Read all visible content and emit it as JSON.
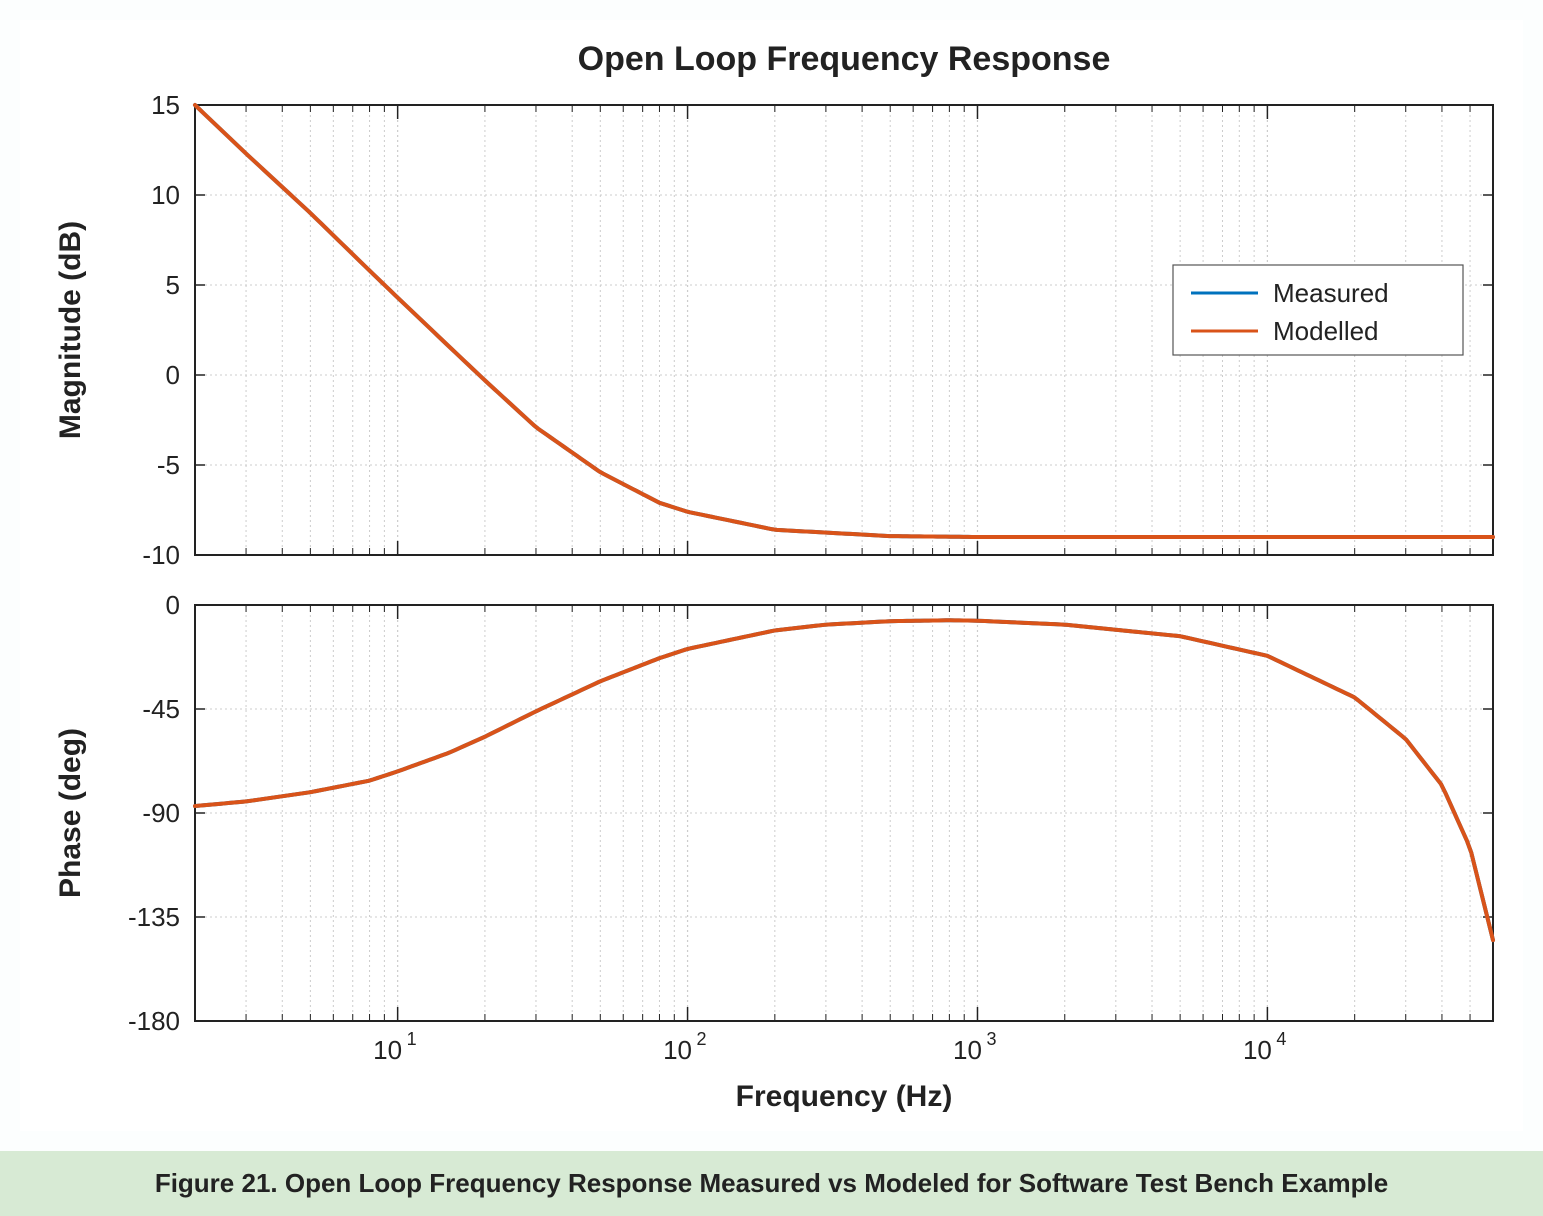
{
  "figure": {
    "title": "Open Loop Frequency Response",
    "title_fontsize": 34,
    "title_fontweight": "bold",
    "background_color": "#ffffff",
    "page_background": "#fcfefe",
    "axis_color": "#222222",
    "grid_color": "#cccccc",
    "tick_color": "#222222",
    "tick_fontsize": 26,
    "label_fontsize": 30,
    "label_fontweight": "bold",
    "xlabel": "Frequency  (Hz)",
    "x_scale": "log",
    "xlim": [
      2,
      60000
    ],
    "x_major_ticks": [
      10,
      100,
      1000,
      10000
    ],
    "x_major_tick_labels": [
      "10^1",
      "10^2",
      "10^3",
      "10^4"
    ],
    "x_minor_ticks": [
      2,
      3,
      4,
      5,
      6,
      7,
      8,
      9,
      20,
      30,
      40,
      50,
      60,
      70,
      80,
      90,
      200,
      300,
      400,
      500,
      600,
      700,
      800,
      900,
      2000,
      3000,
      4000,
      5000,
      6000,
      7000,
      8000,
      9000,
      20000,
      30000,
      40000,
      50000,
      60000
    ],
    "series_colors": {
      "measured": "#0072bd",
      "modelled": "#d95319"
    },
    "line_width": 4,
    "legend": {
      "labels": [
        "Measured",
        "Modelled"
      ],
      "colors": [
        "#0072bd",
        "#d95319"
      ],
      "box_color": "#ffffff",
      "border_color": "#555555",
      "fontsize": 26,
      "position": "upper-right-inset"
    }
  },
  "magnitude_panel": {
    "ylabel": "Magnitude (dB)",
    "ylim": [
      -10,
      15
    ],
    "ytick_step": 5,
    "yticks": [
      -10,
      -5,
      0,
      5,
      10,
      15
    ],
    "series": {
      "measured": {
        "f": [
          2,
          3,
          5,
          8,
          10,
          15,
          20,
          30,
          50,
          80,
          100,
          200,
          500,
          1000,
          5000,
          10000,
          50000,
          60000
        ],
        "mag": [
          15,
          12.3,
          9.0,
          5.8,
          4.3,
          1.6,
          -0.3,
          -2.9,
          -5.4,
          -7.1,
          -7.6,
          -8.6,
          -8.95,
          -9.0,
          -9.0,
          -9.0,
          -9.0,
          -9.0
        ]
      },
      "modelled": {
        "f": [
          2,
          3,
          5,
          8,
          10,
          15,
          20,
          30,
          50,
          80,
          100,
          200,
          500,
          1000,
          5000,
          10000,
          50000,
          60000
        ],
        "mag": [
          15,
          12.3,
          9.0,
          5.8,
          4.3,
          1.6,
          -0.3,
          -2.9,
          -5.4,
          -7.1,
          -7.6,
          -8.6,
          -8.95,
          -9.0,
          -9.0,
          -9.0,
          -9.0,
          -9.0
        ]
      }
    }
  },
  "phase_panel": {
    "ylabel": "Phase (deg)",
    "ylim": [
      -180,
      0
    ],
    "ytick_step": 45,
    "yticks": [
      -180,
      -135,
      -90,
      -45,
      0
    ],
    "series": {
      "measured": {
        "f": [
          2,
          3,
          5,
          8,
          10,
          15,
          20,
          30,
          50,
          80,
          100,
          200,
          300,
          500,
          800,
          1000,
          2000,
          5000,
          10000,
          20000,
          30000,
          40000,
          50000,
          60000
        ],
        "phase": [
          -87,
          -85,
          -81,
          -76,
          -72,
          -64,
          -57,
          -46,
          -33,
          -23,
          -19,
          -11,
          -8.5,
          -7,
          -6.6,
          -6.8,
          -8.5,
          -13.5,
          -22,
          -40,
          -58,
          -78,
          -105,
          -145
        ]
      },
      "modelled": {
        "f": [
          2,
          3,
          5,
          8,
          10,
          15,
          20,
          30,
          50,
          80,
          100,
          200,
          300,
          500,
          800,
          1000,
          2000,
          5000,
          10000,
          20000,
          30000,
          40000,
          50000,
          60000
        ],
        "phase": [
          -87,
          -85,
          -81,
          -76,
          -72,
          -64,
          -57,
          -46,
          -33,
          -23,
          -19,
          -11,
          -8.5,
          -7,
          -6.6,
          -6.8,
          -8.5,
          -13.5,
          -22,
          -40,
          -58,
          -78,
          -105,
          -145
        ]
      }
    }
  },
  "caption": {
    "text": "Figure 21. Open Loop Frequency Response Measured vs Modeled for Software Test Bench Example",
    "background_color": "#d7ead4",
    "fontsize": 26,
    "fontweight": "bold"
  }
}
